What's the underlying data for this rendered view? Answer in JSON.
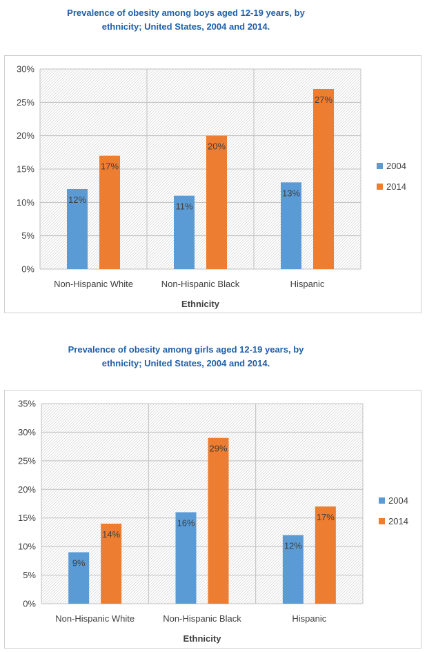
{
  "chart_data": [
    {
      "type": "bar",
      "title_lines": [
        "Prevalence of obesity among boys aged 12-19 years, by",
        "ethnicity; United States, 2004 and 2014."
      ],
      "categories": [
        "Non-Hispanic White",
        "Non-Hispanic Black",
        "Hispanic"
      ],
      "series": [
        {
          "name": "2004",
          "color": "#5b9bd5",
          "values": [
            12,
            11,
            13
          ],
          "labels": [
            "12%",
            "11%",
            "13%"
          ]
        },
        {
          "name": "2014",
          "color": "#ed7d31",
          "values": [
            17,
            20,
            27
          ],
          "labels": [
            "17%",
            "20%",
            "27%"
          ]
        }
      ],
      "xlabel": "Ethnicity",
      "ylabel": "",
      "ylim": [
        0,
        30
      ],
      "yticks": [
        0,
        5,
        10,
        15,
        20,
        25,
        30
      ],
      "ytick_labels": [
        "0%",
        "5%",
        "10%",
        "15%",
        "20%",
        "25%",
        "30%"
      ],
      "grid": true,
      "legend_position": "right"
    },
    {
      "type": "bar",
      "title_lines": [
        "Prevalence of obesity among girls aged 12-19 years, by",
        "ethnicity; United States, 2004 and 2014."
      ],
      "categories": [
        "Non-Hispanic White",
        "Non-Hispanic Black",
        "Hispanic"
      ],
      "series": [
        {
          "name": "2004",
          "color": "#5b9bd5",
          "values": [
            9,
            16,
            12
          ],
          "labels": [
            "9%",
            "16%",
            "12%"
          ]
        },
        {
          "name": "2014",
          "color": "#ed7d31",
          "values": [
            14,
            29,
            17
          ],
          "labels": [
            "14%",
            "29%",
            "17%"
          ]
        }
      ],
      "xlabel": "Ethnicity",
      "ylabel": "",
      "ylim": [
        0,
        35
      ],
      "yticks": [
        0,
        5,
        10,
        15,
        20,
        25,
        30,
        35
      ],
      "ytick_labels": [
        "0%",
        "5%",
        "10%",
        "15%",
        "20%",
        "25%",
        "30%",
        "35%"
      ],
      "grid": true,
      "legend_position": "right"
    }
  ]
}
